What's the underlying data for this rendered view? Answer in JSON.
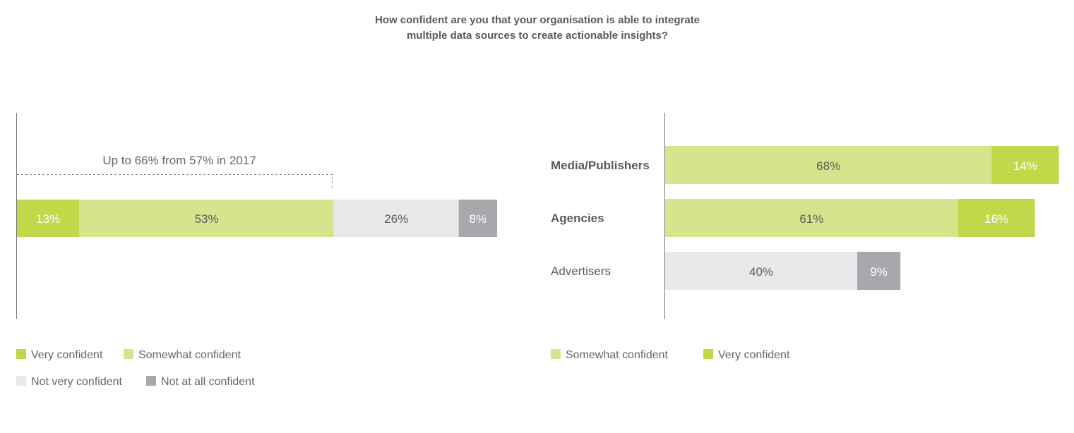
{
  "chart_data": [
    {
      "type": "bar",
      "orientation": "horizontal",
      "stacked": true,
      "title": "How confident are you that your organisation is able to integrate multiple data sources to create actionable insights?",
      "annotation": "Up to 66% from 57% in 2017",
      "categories": [
        ""
      ],
      "series": [
        {
          "name": "Very confident",
          "color": "#c1d84a",
          "values": [
            13
          ],
          "labels": [
            "13%"
          ],
          "label_color": "#ffffff"
        },
        {
          "name": "Somewhat confident",
          "color": "#d6e48e",
          "values": [
            53
          ],
          "labels": [
            "53%"
          ],
          "label_color": "#5b5b5b"
        },
        {
          "name": "Not very confident",
          "color": "#e8e9ea",
          "values": [
            26
          ],
          "labels": [
            "26%"
          ],
          "label_color": "#5b5b5b"
        },
        {
          "name": "Not at all confident",
          "color": "#a7a8ab",
          "values": [
            8
          ],
          "labels": [
            "8%"
          ],
          "label_color": "#ffffff"
        }
      ],
      "legend": [
        "Very confident",
        "Somewhat confident",
        "Not very confident",
        "Not at all confident"
      ],
      "legend_placement": "bottom",
      "xlim": [
        0,
        100
      ]
    },
    {
      "type": "bar",
      "orientation": "horizontal",
      "stacked": true,
      "categories": [
        "Media/Publishers",
        "Agencies",
        "Advertisers"
      ],
      "category_bold": [
        true,
        true,
        false
      ],
      "segments": [
        [
          {
            "value": 68,
            "label": "68%",
            "color": "#d6e48e",
            "label_color": "#5b5b5b"
          },
          {
            "value": 14,
            "label": "14%",
            "color": "#c1d84a",
            "label_color": "#ffffff"
          }
        ],
        [
          {
            "value": 61,
            "label": "61%",
            "color": "#d6e48e",
            "label_color": "#5b5b5b"
          },
          {
            "value": 16,
            "label": "16%",
            "color": "#c1d84a",
            "label_color": "#ffffff"
          }
        ],
        [
          {
            "value": 40,
            "label": "40%",
            "color": "#e8e9ea",
            "label_color": "#5b5b5b"
          },
          {
            "value": 9,
            "label": "9%",
            "color": "#a7a8ab",
            "label_color": "#ffffff"
          }
        ]
      ],
      "legend": [
        {
          "name": "Somewhat confident",
          "color": "#d6e48e"
        },
        {
          "name": "Very confident",
          "color": "#c1d84a"
        }
      ],
      "legend_placement": "bottom",
      "xlim": [
        0,
        100
      ]
    }
  ],
  "title_lines": [
    "How confident are you that your organisation is able to integrate",
    "multiple data sources to create actionable insights?"
  ]
}
